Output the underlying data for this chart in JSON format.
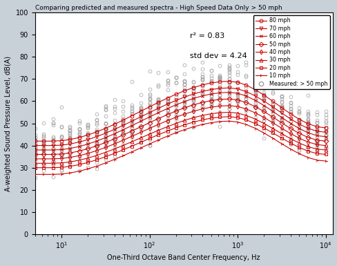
{
  "title": "Comparing predicted and measured spectra - High Speed Data Only > 50 mph",
  "xlabel": "One-Third Octave Band Center Frequency, Hz",
  "ylabel": "A-weighted Sound Pressure Level, dB(A)",
  "annotation_r2": "r² = 0.83",
  "annotation_std": "std dev = 4.24",
  "xlim": [
    5,
    12000
  ],
  "ylim": [
    0,
    100
  ],
  "yticks": [
    0,
    10,
    20,
    30,
    40,
    50,
    60,
    70,
    80,
    90,
    100
  ],
  "speeds": [
    80,
    70,
    60,
    50,
    40,
    30,
    20,
    10
  ],
  "peak_db": {
    "80": 69,
    "70": 66,
    "60": 64,
    "50": 61,
    "40": 58,
    "30": 55,
    "20": 53,
    "10": 51
  },
  "low_freq_db": {
    "80": 42,
    "70": 40,
    "60": 38,
    "50": 36,
    "40": 34,
    "30": 32,
    "20": 30,
    "10": 27
  },
  "high_freq_db": {
    "80": 48,
    "70": 46,
    "60": 44,
    "50": 42,
    "40": 40,
    "30": 38,
    "20": 36,
    "10": 33
  },
  "color_map": {
    "80": "#cc0000",
    "70": "#cc0000",
    "60": "#cc0000",
    "50": "#cc0000",
    "40": "#cc0000",
    "30": "#cc0000",
    "20": "#cc0000",
    "10": "#cc0000"
  },
  "marker_map": {
    "80": "o",
    "70": "v",
    "60": "x",
    "50": "D",
    "40": "d",
    "30": "^",
    "20": "s",
    "10": "4"
  },
  "freq_centers": [
    5,
    6.3,
    8,
    10,
    12.5,
    16,
    20,
    25,
    31.5,
    40,
    50,
    63,
    80,
    100,
    125,
    160,
    200,
    250,
    315,
    400,
    500,
    630,
    800,
    1000,
    1250,
    1600,
    2000,
    2500,
    3150,
    4000,
    5000,
    6300,
    8000,
    10000
  ],
  "figure_facecolor": "#c8d0d8",
  "axes_facecolor": "#ffffff"
}
